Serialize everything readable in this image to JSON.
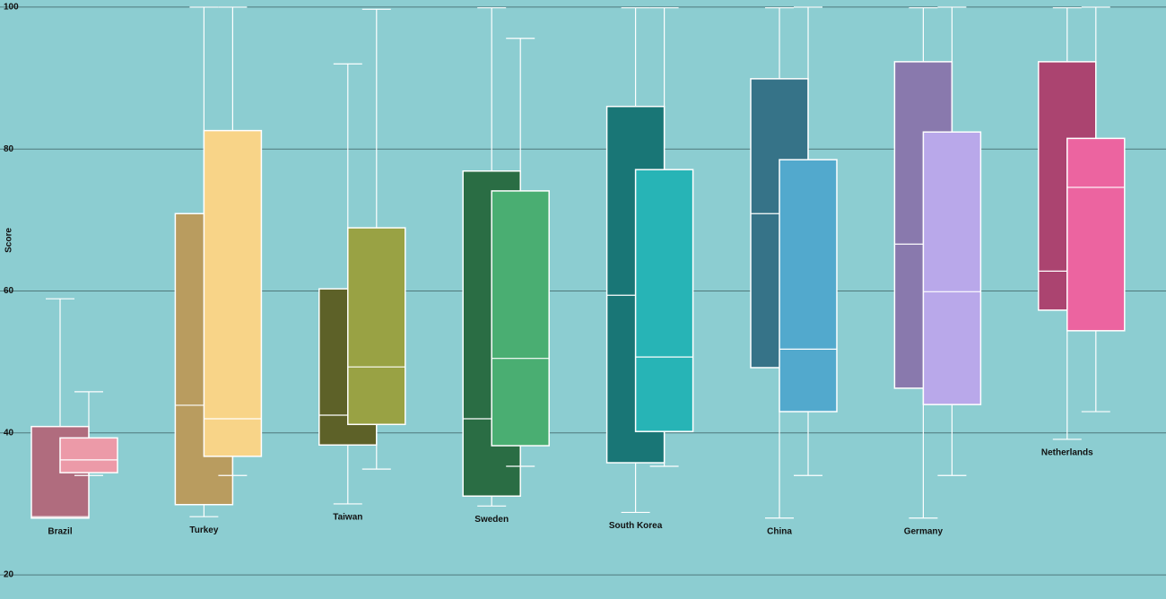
{
  "chart_data": {
    "type": "box",
    "y_label": "Score",
    "categories": [
      "Brazil",
      "Turkey",
      "Taiwan",
      "Sweden",
      "South Korea",
      "China",
      "Germany",
      "Netherlands"
    ],
    "series": [
      {
        "colors": [
          "#b06c7e",
          "#b99c5f",
          "#5d6128",
          "#2a6d44",
          "#197676",
          "#367388",
          "#8979ad",
          "#ab4470"
        ],
        "min": [
          28.0,
          28.2,
          30.0,
          29.7,
          28.8,
          28.0,
          28.0,
          39.1
        ],
        "q1": [
          28.0,
          29.9,
          38.3,
          31.1,
          35.8,
          49.2,
          46.3,
          57.3
        ],
        "median": [
          28.2,
          43.9,
          42.5,
          42.0,
          59.4,
          70.9,
          66.6,
          62.8
        ],
        "q3": [
          40.9,
          70.9,
          60.3,
          76.9,
          86.0,
          89.9,
          92.3,
          92.3
        ],
        "max": [
          58.9,
          100,
          92.0,
          99.9,
          99.9,
          99.9,
          99.9,
          99.9
        ]
      },
      {
        "colors": [
          "#ec9aa8",
          "#f8d488",
          "#99a244",
          "#4aae72",
          "#27b4b6",
          "#52a9cd",
          "#b9a8ea",
          "#ec64a0"
        ],
        "min": [
          34.0,
          34.0,
          34.9,
          35.3,
          35.3,
          34.0,
          34.0,
          43.0
        ],
        "q1": [
          34.4,
          36.7,
          41.2,
          38.2,
          40.2,
          43.0,
          44.0,
          54.4
        ],
        "median": [
          36.2,
          42.0,
          49.3,
          50.5,
          50.7,
          51.8,
          59.9,
          74.6
        ],
        "q3": [
          39.3,
          82.6,
          68.9,
          74.1,
          77.1,
          78.5,
          82.4,
          81.5
        ],
        "max": [
          45.8,
          100,
          99.7,
          95.6,
          99.9,
          100,
          100,
          100
        ]
      }
    ],
    "ylim": [
      16.6,
      101
    ],
    "yticks": [
      20,
      40,
      60,
      80,
      100
    ],
    "grid": true,
    "background": "#8ccdd1",
    "grid_color": "#4f7a7c"
  }
}
